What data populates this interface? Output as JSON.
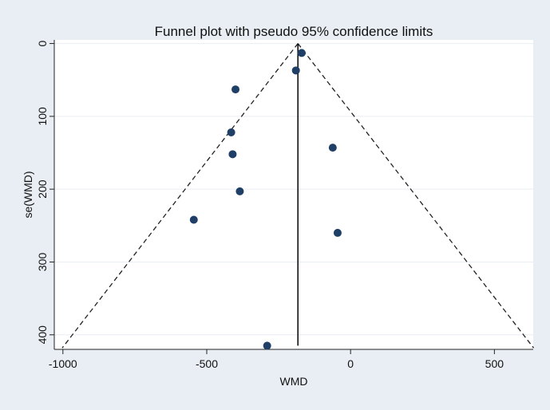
{
  "chart_data": {
    "type": "scatter",
    "title": "Funnel plot with pseudo 95% confidence limits",
    "xlabel": "WMD",
    "ylabel": "se(WMD)",
    "xlim": [
      -1030,
      635
    ],
    "ylim": [
      420,
      -5
    ],
    "y_reversed": true,
    "grid": true,
    "x_ticks": [
      -1000,
      -500,
      0,
      500
    ],
    "y_ticks": [
      0,
      100,
      200,
      300,
      400
    ],
    "pooled_estimate": -183,
    "confidence_limit_z": 1.96,
    "points": [
      {
        "x": -170,
        "y": 13
      },
      {
        "x": -190,
        "y": 37
      },
      {
        "x": -400,
        "y": 63
      },
      {
        "x": -415,
        "y": 122
      },
      {
        "x": -410,
        "y": 152
      },
      {
        "x": -62,
        "y": 143
      },
      {
        "x": -385,
        "y": 203
      },
      {
        "x": -545,
        "y": 242
      },
      {
        "x": -45,
        "y": 260
      },
      {
        "x": -290,
        "y": 415
      }
    ]
  }
}
